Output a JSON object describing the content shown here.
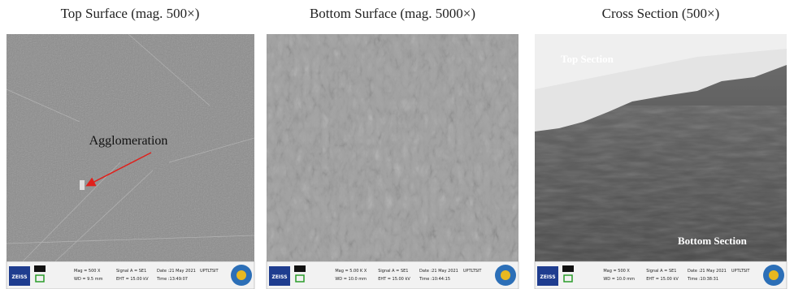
{
  "panels": [
    {
      "title": "Top Surface (mag. 500×)",
      "annotations": [
        "Agglomeration"
      ],
      "info": {
        "brand": "ZEISS",
        "mag": "Mag =  500 X",
        "wd": "WD = 9.5 mm",
        "signal": "Signal A = SE1",
        "eht": "EHT = 15.00 kV",
        "date": "Date :21 May 2021",
        "time": "Time :13:49:07",
        "lab": "UPTLTSIT"
      }
    },
    {
      "title": "Bottom Surface (mag. 5000×)",
      "annotations": [],
      "info": {
        "brand": "ZEISS",
        "mag": "Mag =  5.00 K X",
        "wd": "WD = 10.0 mm",
        "signal": "Signal A = SE1",
        "eht": "EHT = 15.00 kV",
        "date": "Date :21 May 2021",
        "time": "Time :10:44:15",
        "lab": "UPTLTSIT"
      }
    },
    {
      "title": "Cross Section (500×)",
      "annotations": [
        "Top Section",
        "Bottom Section"
      ],
      "info": {
        "brand": "ZEISS",
        "mag": "Mag =  500 X",
        "wd": "WD = 10.0 mm",
        "signal": "Signal A = SE1",
        "eht": "EHT = 15.00 kV",
        "date": "Date :21 May 2021",
        "time": "Time :10:38:31",
        "lab": "UPTLTSIT"
      }
    }
  ]
}
